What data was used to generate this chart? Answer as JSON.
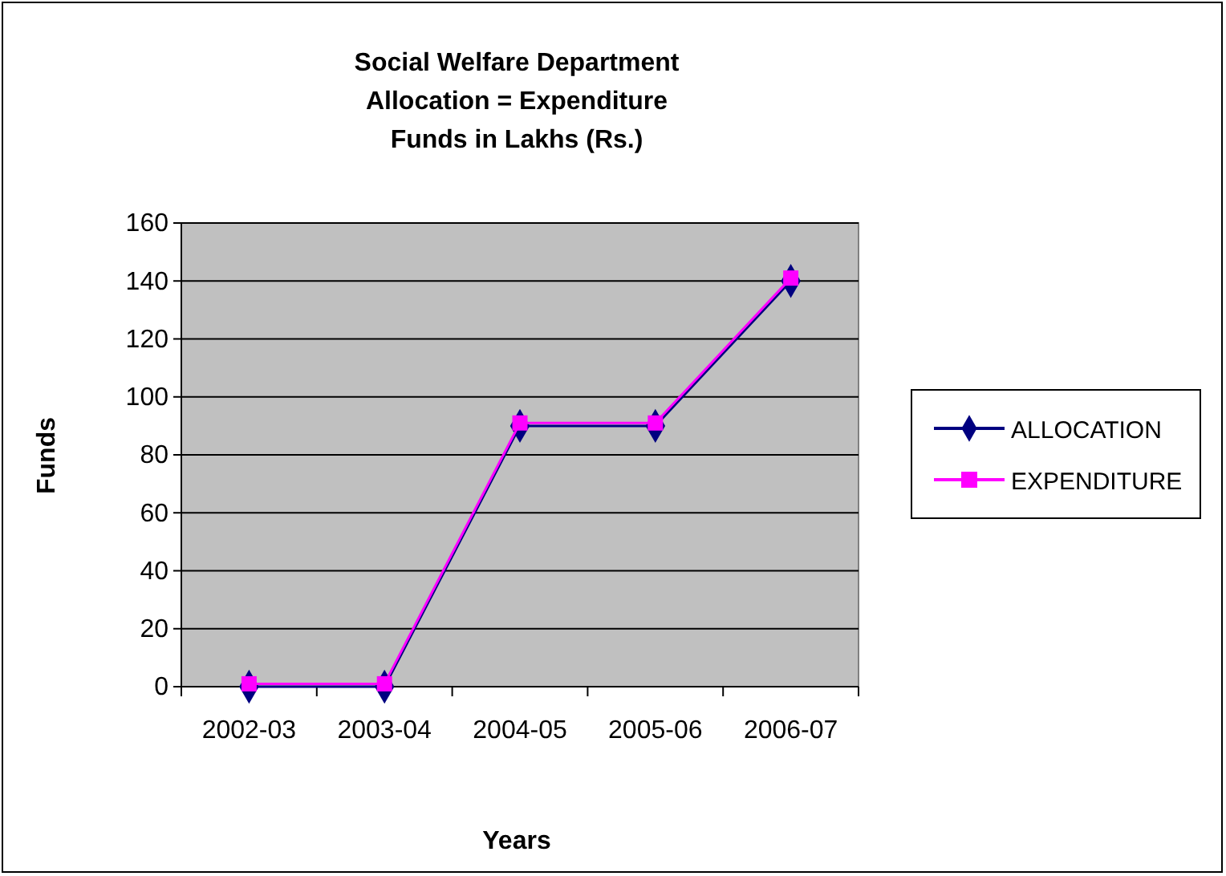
{
  "chart_data": {
    "type": "line",
    "title": "Social Welfare Department\nAllocation = Expenditure\nFunds in Lakhs (Rs.)",
    "xlabel": "Years",
    "ylabel": "Funds",
    "categories": [
      "2002-03",
      "2003-04",
      "2004-05",
      "2005-06",
      "2006-07"
    ],
    "series": [
      {
        "name": "ALLOCATION",
        "color": "#000080",
        "marker": "diamond",
        "values": [
          0,
          0,
          90,
          90,
          140
        ]
      },
      {
        "name": "EXPENDITURE",
        "color": "#ff00ff",
        "marker": "square",
        "values": [
          1,
          1,
          91,
          91,
          141
        ]
      }
    ],
    "ylim": [
      0,
      160
    ],
    "yticks": [
      0,
      20,
      40,
      60,
      80,
      100,
      120,
      140,
      160
    ],
    "grid": "y",
    "legend": "right",
    "line_style": "solid"
  }
}
